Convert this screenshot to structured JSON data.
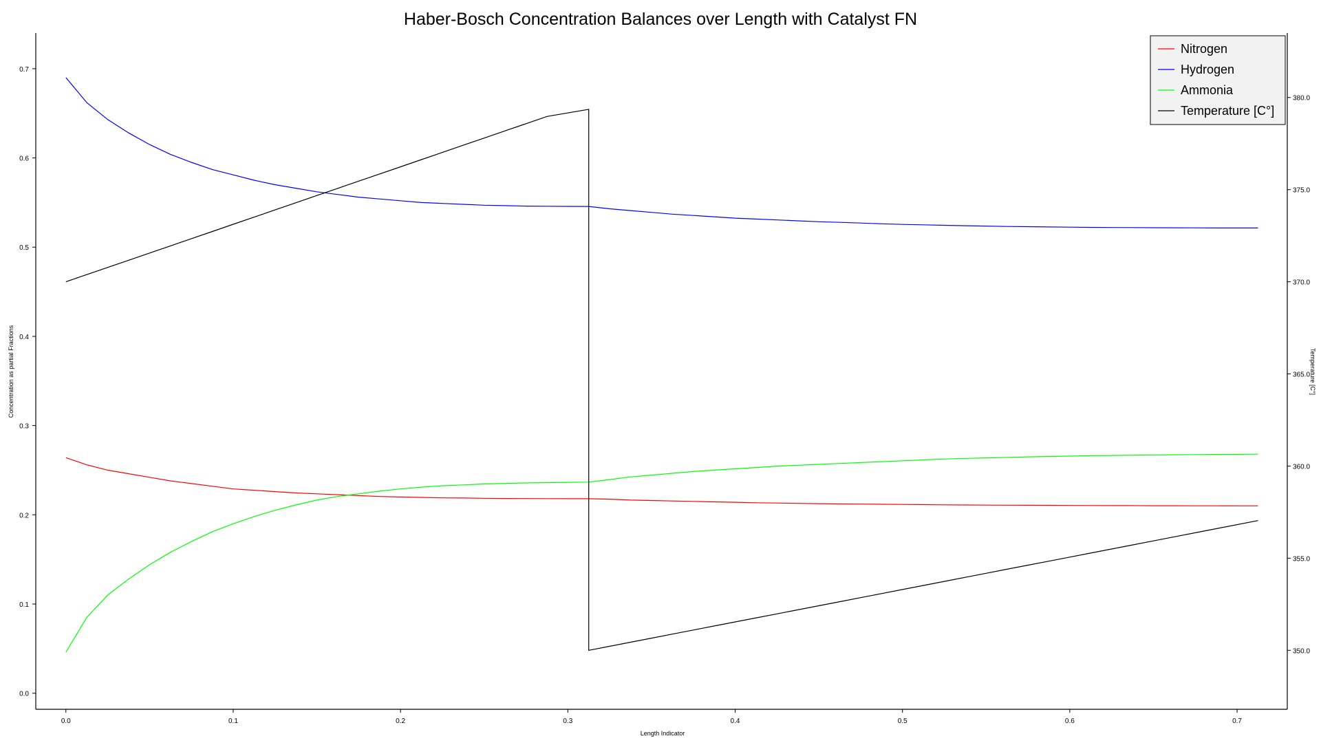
{
  "chart_data": {
    "type": "line",
    "title": "Haber-Bosch Concentration Balances over Length with Catalyst FN",
    "xlabel": "Length Indicator",
    "ylabel": "Concentration as partial Fractions",
    "y2label": "Temperature [C°]",
    "xlim": [
      -0.018,
      0.73
    ],
    "ylim": [
      -0.018,
      0.74
    ],
    "y2lim": [
      346.8,
      383.5
    ],
    "xticks": [
      "0.0",
      "0.1",
      "0.2",
      "0.3",
      "0.4",
      "0.5",
      "0.6",
      "0.7"
    ],
    "yticks": [
      "0.0",
      "0.1",
      "0.2",
      "0.3",
      "0.4",
      "0.5",
      "0.6",
      "0.7"
    ],
    "y2ticks": [
      "350.0",
      "355.0",
      "360.0",
      "365.0",
      "370.0",
      "375.0",
      "380.0"
    ],
    "grid": false,
    "legend_position": "top-right",
    "x": [
      0.0,
      0.0125,
      0.025,
      0.0375,
      0.05,
      0.0625,
      0.075,
      0.0875,
      0.1,
      0.1125,
      0.125,
      0.1375,
      0.15,
      0.1625,
      0.175,
      0.1875,
      0.2,
      0.2125,
      0.225,
      0.2375,
      0.25,
      0.2625,
      0.275,
      0.2875,
      0.3,
      0.3125,
      0.325,
      0.3375,
      0.35,
      0.3625,
      0.375,
      0.3875,
      0.4,
      0.4125,
      0.425,
      0.4375,
      0.45,
      0.4625,
      0.475,
      0.4875,
      0.5,
      0.5125,
      0.525,
      0.5375,
      0.55,
      0.5625,
      0.575,
      0.5875,
      0.6,
      0.6125,
      0.625,
      0.6375,
      0.65,
      0.6625,
      0.675,
      0.6875,
      0.7,
      0.7125
    ],
    "series": [
      {
        "name": "Nitrogen",
        "axis": "left",
        "color": "#ff0000",
        "values": [
          0.264,
          0.256,
          0.25,
          0.246,
          0.242,
          0.238,
          0.235,
          0.232,
          0.229,
          0.2275,
          0.226,
          0.2245,
          0.2235,
          0.2225,
          0.2215,
          0.2205,
          0.22,
          0.2195,
          0.219,
          0.2188,
          0.2185,
          0.2183,
          0.2182,
          0.2181,
          0.218,
          0.218,
          0.2175,
          0.2165,
          0.216,
          0.2155,
          0.215,
          0.2145,
          0.214,
          0.2135,
          0.2132,
          0.2128,
          0.2125,
          0.2122,
          0.212,
          0.2118,
          0.2116,
          0.2114,
          0.2112,
          0.211,
          0.2109,
          0.2108,
          0.2107,
          0.2106,
          0.2105,
          0.2104,
          0.2103,
          0.2103,
          0.2102,
          0.2102,
          0.2101,
          0.2101,
          0.21,
          0.21
        ]
      },
      {
        "name": "Hydrogen",
        "axis": "left",
        "color": "#0000ff",
        "values": [
          0.69,
          0.662,
          0.643,
          0.628,
          0.615,
          0.604,
          0.595,
          0.587,
          0.581,
          0.575,
          0.57,
          0.566,
          0.562,
          0.559,
          0.556,
          0.554,
          0.552,
          0.55,
          0.549,
          0.548,
          0.547,
          0.5465,
          0.546,
          0.5458,
          0.5457,
          0.5456,
          0.543,
          0.541,
          0.539,
          0.537,
          0.5355,
          0.534,
          0.5325,
          0.5315,
          0.5305,
          0.5295,
          0.5285,
          0.5278,
          0.527,
          0.5262,
          0.5255,
          0.525,
          0.5245,
          0.524,
          0.5236,
          0.5232,
          0.5229,
          0.5226,
          0.5224,
          0.5222,
          0.522,
          0.5219,
          0.5218,
          0.5217,
          0.5216,
          0.5215,
          0.5215,
          0.5215
        ]
      },
      {
        "name": "Ammonia",
        "axis": "left",
        "color": "#00ff00",
        "values": [
          0.046,
          0.085,
          0.11,
          0.128,
          0.144,
          0.158,
          0.17,
          0.181,
          0.19,
          0.198,
          0.205,
          0.211,
          0.2165,
          0.2205,
          0.2235,
          0.2265,
          0.229,
          0.231,
          0.2325,
          0.2335,
          0.2345,
          0.2352,
          0.2357,
          0.2361,
          0.2364,
          0.2366,
          0.2395,
          0.2425,
          0.2445,
          0.2465,
          0.2485,
          0.25,
          0.2515,
          0.253,
          0.2545,
          0.2555,
          0.2565,
          0.2575,
          0.2585,
          0.2595,
          0.2605,
          0.2615,
          0.2625,
          0.2632,
          0.2638,
          0.2644,
          0.2649,
          0.2654,
          0.2658,
          0.2662,
          0.2665,
          0.2668,
          0.2671,
          0.2673,
          0.2675,
          0.2677,
          0.2678,
          0.2679
        ]
      },
      {
        "name": "Temperature [C°]",
        "axis": "right",
        "color": "#000000",
        "values": [
          370.0,
          370.39,
          370.78,
          371.17,
          371.56,
          371.95,
          372.34,
          372.73,
          373.12,
          373.51,
          373.9,
          374.29,
          374.68,
          375.07,
          375.46,
          375.85,
          376.24,
          376.63,
          377.02,
          377.41,
          377.8,
          378.19,
          378.58,
          378.97,
          379.36,
          350.0,
          350.22,
          350.44,
          350.66,
          350.88,
          351.1,
          351.32,
          351.54,
          351.76,
          351.98,
          352.2,
          352.42,
          352.64,
          352.86,
          353.08,
          353.3,
          353.52,
          353.74,
          353.96,
          354.18,
          354.4,
          354.62,
          354.84,
          355.06,
          355.28,
          355.5,
          355.72,
          355.94,
          356.16,
          356.38,
          356.6,
          356.82,
          357.04
        ],
        "x_override": [
          0.0,
          0.0125,
          0.025,
          0.0375,
          0.05,
          0.0625,
          0.075,
          0.0875,
          0.1,
          0.1125,
          0.125,
          0.1375,
          0.15,
          0.1625,
          0.175,
          0.1875,
          0.2,
          0.2125,
          0.225,
          0.2375,
          0.25,
          0.2625,
          0.275,
          0.2875,
          0.3125,
          0.3125,
          0.325,
          0.3375,
          0.35,
          0.3625,
          0.375,
          0.3875,
          0.4,
          0.4125,
          0.425,
          0.4375,
          0.45,
          0.4625,
          0.475,
          0.4875,
          0.5,
          0.5125,
          0.525,
          0.5375,
          0.55,
          0.5625,
          0.575,
          0.5875,
          0.6,
          0.6125,
          0.625,
          0.6375,
          0.65,
          0.6625,
          0.675,
          0.6875,
          0.7,
          0.7125
        ]
      }
    ]
  }
}
